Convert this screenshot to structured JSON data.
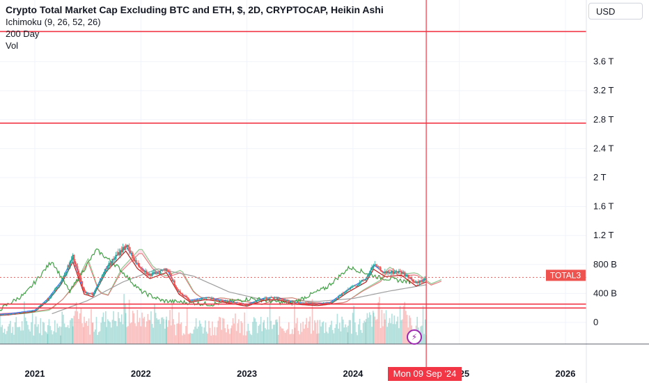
{
  "header": {
    "title": "Crypto Total Market Cap Excluding BTC and ETH, $, 2D, CRYPTOCAP, Heikin Ashi",
    "indicators": [
      "Ichimoku (9, 26, 52, 26)",
      "200 Day",
      "Vol"
    ]
  },
  "currency_button": "USD",
  "crosshair_date": "Mon 09 Sep '24",
  "alert_icon": "lightning-icon",
  "colors": {
    "up": "#26a69a",
    "down": "#ef5350",
    "level_line": "#f23645",
    "conversion": "#2962ff",
    "base": "#b71c1c",
    "lagging": "#43a047",
    "span_a": "#81c784",
    "span_b": "#e57373",
    "ma200": "#9e9e9e",
    "axis_text": "#131722"
  },
  "chart_data": {
    "type": "candlestick",
    "title": "Crypto Total Market Cap Excluding BTC and ETH, $, 2D, CRYPTOCAP, Heikin Ashi",
    "y_axis": {
      "ticks": [
        "0",
        "400 B",
        "800 B",
        "1.2 T",
        "1.6 T",
        "2 T",
        "2.4 T",
        "2.8 T",
        "3.2 T",
        "3.6 T"
      ],
      "tick_values": [
        0,
        400,
        800,
        1200,
        1600,
        2000,
        2400,
        2800,
        3200,
        3600
      ],
      "unit": "billion USD",
      "range": [
        0,
        4300
      ]
    },
    "x_axis": {
      "ticks": [
        "2021",
        "2022",
        "2023",
        "2024",
        "2025",
        "2026"
      ],
      "tick_values": [
        "2021-01-01",
        "2022-01-01",
        "2023-01-01",
        "2024-01-01",
        "2025-01-01",
        "2026-01-01"
      ]
    },
    "horizontal_lines": [
      {
        "label": "4.016 T",
        "value": 4016
      },
      {
        "label": "2.752 T",
        "value": 2752
      },
      {
        "label": "252.641 B",
        "value": 252.641
      },
      {
        "label": "198.831 B",
        "value": 198.831
      }
    ],
    "price_labels": [
      {
        "name": "TOTAL3",
        "label": "621.193 B",
        "value": 621.193
      },
      {
        "name": "",
        "label": "614.73 B",
        "value": 614.73
      }
    ],
    "crosshair": {
      "x": "2024-09-09"
    },
    "price_series": [
      {
        "x": "2020-07-01",
        "y": 90
      },
      {
        "x": "2020-10-01",
        "y": 110
      },
      {
        "x": "2021-01-01",
        "y": 160
      },
      {
        "x": "2021-02-15",
        "y": 320
      },
      {
        "x": "2021-04-01",
        "y": 560
      },
      {
        "x": "2021-05-12",
        "y": 900
      },
      {
        "x": "2021-06-20",
        "y": 420
      },
      {
        "x": "2021-07-20",
        "y": 380
      },
      {
        "x": "2021-09-05",
        "y": 760
      },
      {
        "x": "2021-11-10",
        "y": 1060
      },
      {
        "x": "2021-12-20",
        "y": 800
      },
      {
        "x": "2022-02-01",
        "y": 650
      },
      {
        "x": "2022-03-30",
        "y": 740
      },
      {
        "x": "2022-05-12",
        "y": 420
      },
      {
        "x": "2022-06-20",
        "y": 300
      },
      {
        "x": "2022-08-15",
        "y": 340
      },
      {
        "x": "2022-11-10",
        "y": 280
      },
      {
        "x": "2023-01-01",
        "y": 240
      },
      {
        "x": "2023-03-01",
        "y": 330
      },
      {
        "x": "2023-04-15",
        "y": 340
      },
      {
        "x": "2023-06-15",
        "y": 270
      },
      {
        "x": "2023-09-01",
        "y": 250
      },
      {
        "x": "2023-10-15",
        "y": 270
      },
      {
        "x": "2023-12-15",
        "y": 450
      },
      {
        "x": "2024-02-15",
        "y": 600
      },
      {
        "x": "2024-03-12",
        "y": 790
      },
      {
        "x": "2024-04-20",
        "y": 680
      },
      {
        "x": "2024-06-15",
        "y": 700
      },
      {
        "x": "2024-08-05",
        "y": 540
      },
      {
        "x": "2024-09-09",
        "y": 600
      }
    ],
    "ma200_series": [
      {
        "x": "2021-03-01",
        "y": 120
      },
      {
        "x": "2021-07-01",
        "y": 300
      },
      {
        "x": "2021-11-01",
        "y": 560
      },
      {
        "x": "2022-03-01",
        "y": 740
      },
      {
        "x": "2022-07-01",
        "y": 640
      },
      {
        "x": "2022-11-01",
        "y": 420
      },
      {
        "x": "2023-03-01",
        "y": 310
      },
      {
        "x": "2023-09-01",
        "y": 290
      },
      {
        "x": "2024-01-01",
        "y": 330
      },
      {
        "x": "2024-05-01",
        "y": 430
      },
      {
        "x": "2024-09-09",
        "y": 520
      }
    ],
    "lagging_series": [
      {
        "x": "2020-08-01",
        "y": 100
      },
      {
        "x": "2020-12-01",
        "y": 400
      },
      {
        "x": "2021-03-01",
        "y": 850
      },
      {
        "x": "2021-05-01",
        "y": 420
      },
      {
        "x": "2021-08-01",
        "y": 1000
      },
      {
        "x": "2021-10-10",
        "y": 780
      },
      {
        "x": "2022-01-01",
        "y": 430
      },
      {
        "x": "2022-03-15",
        "y": 300
      },
      {
        "x": "2022-09-01",
        "y": 250
      },
      {
        "x": "2023-01-15",
        "y": 330
      },
      {
        "x": "2023-06-01",
        "y": 260
      },
      {
        "x": "2023-10-01",
        "y": 480
      },
      {
        "x": "2023-12-20",
        "y": 760
      },
      {
        "x": "2024-04-01",
        "y": 620
      },
      {
        "x": "2024-07-15",
        "y": 560
      }
    ],
    "volume_note": "relative volume bars along bottom pane"
  }
}
